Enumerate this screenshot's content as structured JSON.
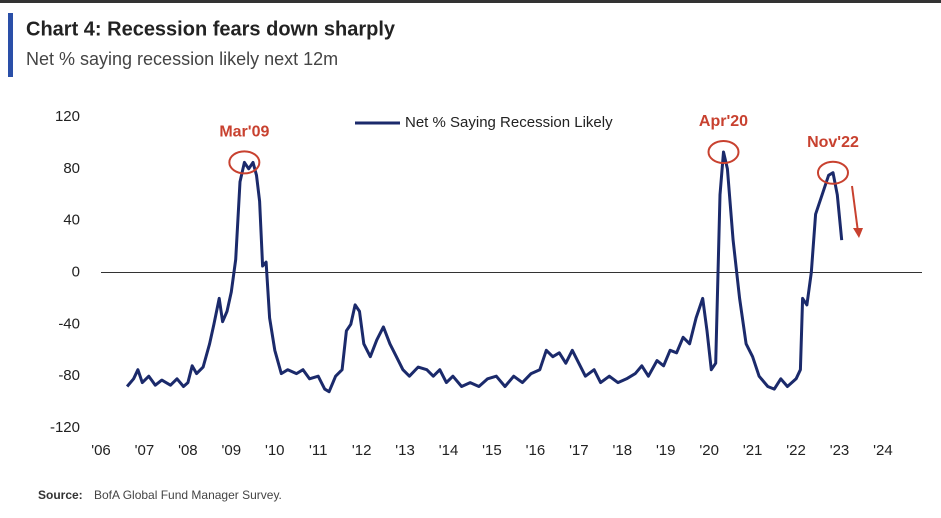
{
  "chart_data": {
    "type": "line",
    "title": "Chart 4: Recession fears down sharply",
    "subtitle": "Net % saying recession likely next 12m",
    "source_label": "Source:",
    "source": "BofA Global Fund Manager Survey.",
    "x": [
      2006.6,
      2006.75,
      2006.85,
      2006.95,
      2007.1,
      2007.25,
      2007.4,
      2007.6,
      2007.75,
      2007.9,
      2008.0,
      2008.1,
      2008.2,
      2008.35,
      2008.5,
      2008.6,
      2008.72,
      2008.8,
      2008.9,
      2009.0,
      2009.1,
      2009.2,
      2009.3,
      2009.4,
      2009.5,
      2009.58,
      2009.65,
      2009.72,
      2009.8,
      2009.88,
      2010.0,
      2010.15,
      2010.3,
      2010.5,
      2010.65,
      2010.8,
      2011.0,
      2011.15,
      2011.25,
      2011.4,
      2011.55,
      2011.65,
      2011.75,
      2011.85,
      2011.95,
      2012.05,
      2012.2,
      2012.35,
      2012.5,
      2012.65,
      2012.8,
      2012.95,
      2013.1,
      2013.3,
      2013.5,
      2013.65,
      2013.8,
      2013.95,
      2014.1,
      2014.3,
      2014.5,
      2014.7,
      2014.9,
      2015.1,
      2015.3,
      2015.5,
      2015.7,
      2015.9,
      2016.1,
      2016.25,
      2016.4,
      2016.55,
      2016.7,
      2016.85,
      2017.0,
      2017.15,
      2017.35,
      2017.5,
      2017.7,
      2017.9,
      2018.1,
      2018.3,
      2018.45,
      2018.6,
      2018.8,
      2018.95,
      2019.1,
      2019.25,
      2019.4,
      2019.55,
      2019.7,
      2019.85,
      2019.95,
      2020.05,
      2020.15,
      2020.25,
      2020.33,
      2020.42,
      2020.55,
      2020.7,
      2020.85,
      2021.0,
      2021.15,
      2021.35,
      2021.5,
      2021.65,
      2021.8,
      2022.0,
      2022.1,
      2022.15,
      2022.25,
      2022.35,
      2022.45,
      2022.6,
      2022.75,
      2022.85,
      2022.95,
      2023.05
    ],
    "series": [
      {
        "name": "Net % Saying Recession Likely",
        "color": "#1b2a6b",
        "values": [
          -88,
          -82,
          -75,
          -85,
          -80,
          -87,
          -83,
          -87,
          -82,
          -88,
          -85,
          -72,
          -78,
          -73,
          -55,
          -40,
          -20,
          -38,
          -30,
          -15,
          10,
          70,
          85,
          80,
          85,
          75,
          55,
          5,
          8,
          -35,
          -60,
          -78,
          -75,
          -78,
          -75,
          -82,
          -80,
          -90,
          -92,
          -80,
          -75,
          -45,
          -40,
          -25,
          -30,
          -55,
          -65,
          -52,
          -42,
          -55,
          -65,
          -75,
          -80,
          -73,
          -75,
          -80,
          -75,
          -85,
          -80,
          -88,
          -85,
          -88,
          -82,
          -80,
          -88,
          -80,
          -85,
          -78,
          -75,
          -60,
          -65,
          -62,
          -70,
          -60,
          -70,
          -80,
          -75,
          -85,
          -80,
          -85,
          -82,
          -78,
          -72,
          -80,
          -68,
          -72,
          -60,
          -62,
          -50,
          -55,
          -35,
          -20,
          -45,
          -75,
          -70,
          60,
          93,
          80,
          25,
          -20,
          -55,
          -65,
          -80,
          -88,
          -90,
          -82,
          -88,
          -82,
          -75,
          -20,
          -25,
          0,
          45,
          60,
          75,
          77,
          60,
          25
        ]
      }
    ],
    "xlim": [
      2006,
      2024.6
    ],
    "xticks": [
      {
        "value": 2006,
        "label": "'06"
      },
      {
        "value": 2007,
        "label": "'07"
      },
      {
        "value": 2008,
        "label": "'08"
      },
      {
        "value": 2009,
        "label": "'09"
      },
      {
        "value": 2010,
        "label": "'10"
      },
      {
        "value": 2011,
        "label": "'11"
      },
      {
        "value": 2012,
        "label": "'12"
      },
      {
        "value": 2013,
        "label": "'13"
      },
      {
        "value": 2014,
        "label": "'14"
      },
      {
        "value": 2015,
        "label": "'15"
      },
      {
        "value": 2016,
        "label": "'16"
      },
      {
        "value": 2017,
        "label": "'17"
      },
      {
        "value": 2018,
        "label": "'18"
      },
      {
        "value": 2019,
        "label": "'19"
      },
      {
        "value": 2020,
        "label": "'20"
      },
      {
        "value": 2021,
        "label": "'21"
      },
      {
        "value": 2022,
        "label": "'22"
      },
      {
        "value": 2023,
        "label": "'23"
      },
      {
        "value": 2024,
        "label": "'24"
      }
    ],
    "ylim": [
      -120,
      120
    ],
    "yticks": [
      -120,
      -80,
      -40,
      0,
      40,
      80,
      120
    ],
    "annotations": [
      {
        "text": "Mar'09",
        "x": 2009.3,
        "y": 85
      },
      {
        "text": "Apr'20",
        "x": 2020.33,
        "y": 93
      },
      {
        "text": "Nov'22",
        "x": 2022.85,
        "y": 77
      }
    ],
    "annotation_color": "#c8412f"
  }
}
